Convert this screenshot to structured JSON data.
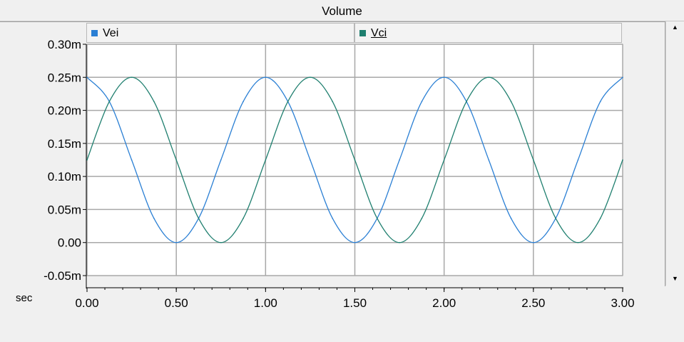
{
  "window": {
    "title": "Volume"
  },
  "legend": {
    "items": [
      {
        "label": "Vei",
        "color": "#2a7fd4"
      },
      {
        "label": "Vci",
        "color": "#1f7f6f"
      }
    ]
  },
  "scrollbar": {
    "up_icon": "triangle-up",
    "down_icon": "triangle-down"
  },
  "chart_data": {
    "type": "line",
    "title": "Volume",
    "xlabel": "sec",
    "ylabel": "",
    "xlim": [
      0,
      3.0
    ],
    "ylim": [
      -0.05,
      0.3
    ],
    "y_scale_unit": "m",
    "x_ticks": [
      "0.00",
      "0.50",
      "1.00",
      "1.50",
      "2.00",
      "2.50",
      "3.00"
    ],
    "x_tick_values": [
      0,
      0.5,
      1.0,
      1.5,
      2.0,
      2.5,
      3.0
    ],
    "y_ticks": [
      "0.30m",
      "0.25m",
      "0.20m",
      "0.15m",
      "0.10m",
      "0.05m",
      "0.00",
      "-0.05m"
    ],
    "y_tick_values": [
      0.3,
      0.25,
      0.2,
      0.15,
      0.1,
      0.05,
      0.0,
      -0.05
    ],
    "grid": true,
    "legend_position": "top",
    "series": [
      {
        "name": "Vei",
        "color": "#2a7fd4",
        "x": [
          0.0,
          0.125,
          0.25,
          0.375,
          0.5,
          0.625,
          0.75,
          0.875,
          1.0,
          1.125,
          1.25,
          1.375,
          1.5,
          1.625,
          1.75,
          1.875,
          2.0,
          2.125,
          2.25,
          2.375,
          2.5,
          2.625,
          2.75,
          2.875,
          3.0
        ],
        "values": [
          0.25,
          0.2134,
          0.125,
          0.0366,
          0.0,
          0.0366,
          0.125,
          0.2134,
          0.25,
          0.2134,
          0.125,
          0.0366,
          0.0,
          0.0366,
          0.125,
          0.2134,
          0.25,
          0.2134,
          0.125,
          0.0366,
          0.0,
          0.0366,
          0.125,
          0.2134,
          0.25
        ]
      },
      {
        "name": "Vci",
        "color": "#1f7f6f",
        "x": [
          0.0,
          0.125,
          0.25,
          0.375,
          0.5,
          0.625,
          0.75,
          0.875,
          1.0,
          1.125,
          1.25,
          1.375,
          1.5,
          1.625,
          1.75,
          1.875,
          2.0,
          2.125,
          2.25,
          2.375,
          2.5,
          2.625,
          2.75,
          2.875,
          3.0
        ],
        "values": [
          0.125,
          0.2134,
          0.25,
          0.2134,
          0.125,
          0.0366,
          0.0,
          0.0366,
          0.125,
          0.2134,
          0.25,
          0.2134,
          0.125,
          0.0366,
          0.0,
          0.0366,
          0.125,
          0.2134,
          0.25,
          0.2134,
          0.125,
          0.0366,
          0.0,
          0.0366,
          0.125
        ]
      }
    ]
  }
}
